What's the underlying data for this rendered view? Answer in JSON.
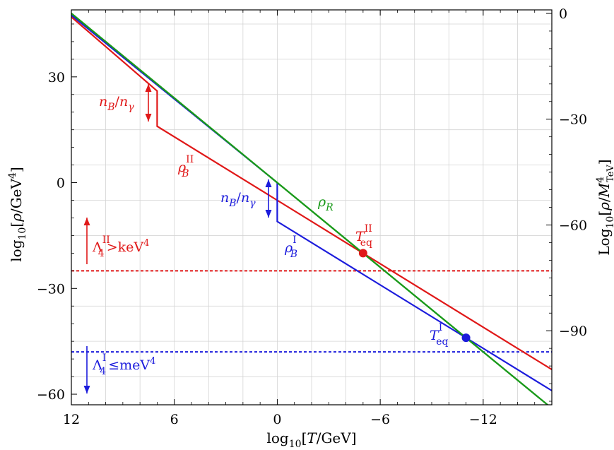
{
  "chart_data": {
    "type": "line",
    "title": "",
    "xlabel": "log₁₀[T/GeV]",
    "ylabel": "log₁₀[ρ/GeV⁴]",
    "y2label": "Log₁₀[ρ/M⁴_TeV]",
    "xlim": [
      12,
      -16
    ],
    "ylim": [
      -63,
      49
    ],
    "y2lim": [
      -111,
      1
    ],
    "x_ticks": [
      12,
      6,
      0,
      -6,
      -12
    ],
    "x_tick_labels": [
      "12",
      "6",
      "0",
      "−6",
      "−12"
    ],
    "y_ticks": [
      30,
      0,
      -30,
      -60
    ],
    "y_tick_labels": [
      "30",
      "0",
      "−30",
      "−60"
    ],
    "y2_ticks": [
      0,
      -30,
      -60,
      -90
    ],
    "y2_tick_labels": [
      "0",
      "−30",
      "−60",
      "−90"
    ],
    "grid": true,
    "series": [
      {
        "name": "ρ_R",
        "color": "#1a9a1a",
        "x": [
          12,
          -16
        ],
        "y": [
          48,
          -64
        ]
      },
      {
        "name": "ρ_B^II",
        "color": "#e01818",
        "x": [
          12,
          7,
          7,
          -16
        ],
        "y": [
          47,
          26,
          16,
          -53
        ]
      },
      {
        "name": "ρ_B^I",
        "color": "#1c1cdc",
        "x": [
          12,
          0,
          0,
          -16
        ],
        "y": [
          47.5,
          0,
          -11,
          -59
        ]
      }
    ],
    "hlines": [
      {
        "label": "Λ₄^II > keV⁴",
        "y": -25,
        "color": "#e01818"
      },
      {
        "label": "Λ₄^I ≤ meV⁴",
        "y": -48,
        "color": "#1c1cdc"
      }
    ],
    "points": [
      {
        "label": "T_eq^II",
        "x": -5,
        "y": -20,
        "color": "#e01818"
      },
      {
        "label": "T_eq^I",
        "x": -11,
        "y": -44,
        "color": "#1c1cdc"
      }
    ],
    "annotations": {
      "nb_ngamma": "n_B/n_γ",
      "rho_r": {
        "main": "ρ",
        "sub": "R"
      },
      "rho_b_ii": {
        "main": "ρ",
        "sub": "B",
        "sup": "II"
      },
      "rho_b_i": {
        "main": "ρ",
        "sub": "B",
        "sup": "I"
      },
      "teq_ii": {
        "main": "T",
        "sub": "eq",
        "sup": "II"
      },
      "teq_i": {
        "main": "T",
        "sub": "eq",
        "sup": "I"
      },
      "lambda_ii": {
        "main": "Λ",
        "sub": "4",
        "sup": "II",
        "rel": ">keV",
        "pow": "4"
      },
      "lambda_i": {
        "main": "Λ",
        "sub": "4",
        "sup": "I",
        "rel": "≤meV",
        "pow": "4"
      }
    },
    "axis_text": {
      "x": {
        "pre": "log",
        "sub": "10",
        "mid": "[",
        "var": "T",
        "post": "/GeV]"
      },
      "y": {
        "pre": "log",
        "sub": "10",
        "mid": "[",
        "var": "ρ",
        "post": "/GeV",
        "pow": "4",
        "end": "]"
      },
      "y2": {
        "pre": "Log",
        "sub": "10",
        "mid": "[",
        "var": "ρ",
        "slash": "/",
        "var2": "M",
        "pow": "4",
        "sub2": "TeV",
        "end": "]"
      }
    }
  }
}
